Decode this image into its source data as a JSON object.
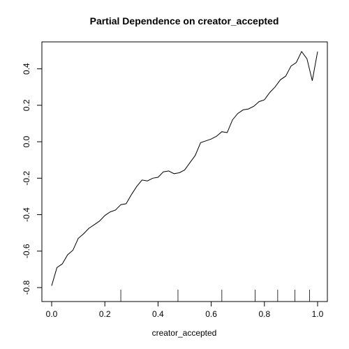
{
  "chart_data": {
    "type": "line",
    "title": "Partial Dependence on creator_accepted",
    "xlabel": "creator_accepted",
    "ylabel": "",
    "xlim": [
      0.0,
      1.0
    ],
    "ylim": [
      -0.8,
      0.5
    ],
    "grid": false,
    "x_ticks": [
      0.0,
      0.2,
      0.4,
      0.6,
      0.8,
      1.0
    ],
    "x_tick_labels": [
      "0.0",
      "0.2",
      "0.4",
      "0.6",
      "0.8",
      "1.0"
    ],
    "y_ticks": [
      -0.8,
      -0.6,
      -0.4,
      -0.2,
      0.0,
      0.2,
      0.4
    ],
    "y_tick_labels": [
      "-0.8",
      "-0.6",
      "-0.4",
      "-0.2",
      "0.0",
      "0.2",
      "0.4"
    ],
    "rug": [
      0.26,
      0.475,
      0.64,
      0.765,
      0.85,
      0.915,
      0.97
    ],
    "line_color": "#000000",
    "series": [
      {
        "x": [
          0.0,
          0.02,
          0.04,
          0.06,
          0.08,
          0.1,
          0.12,
          0.14,
          0.16,
          0.18,
          0.2,
          0.22,
          0.24,
          0.26,
          0.28,
          0.3,
          0.32,
          0.34,
          0.36,
          0.38,
          0.4,
          0.42,
          0.44,
          0.46,
          0.48,
          0.5,
          0.52,
          0.54,
          0.56,
          0.58,
          0.6,
          0.62,
          0.64,
          0.66,
          0.68,
          0.7,
          0.72,
          0.74,
          0.76,
          0.78,
          0.8,
          0.82,
          0.84,
          0.86,
          0.88,
          0.9,
          0.92,
          0.94,
          0.96,
          0.98,
          1.0
        ],
        "values": [
          -0.79,
          -0.69,
          -0.67,
          -0.62,
          -0.595,
          -0.53,
          -0.505,
          -0.475,
          -0.455,
          -0.435,
          -0.405,
          -0.385,
          -0.375,
          -0.345,
          -0.34,
          -0.29,
          -0.245,
          -0.21,
          -0.215,
          -0.2,
          -0.195,
          -0.165,
          -0.16,
          -0.175,
          -0.17,
          -0.155,
          -0.115,
          -0.075,
          -0.005,
          0.005,
          0.015,
          0.03,
          0.055,
          0.05,
          0.12,
          0.155,
          0.175,
          0.18,
          0.195,
          0.22,
          0.23,
          0.27,
          0.3,
          0.34,
          0.36,
          0.415,
          0.435,
          0.495,
          0.455,
          0.335,
          0.495
        ]
      }
    ]
  }
}
